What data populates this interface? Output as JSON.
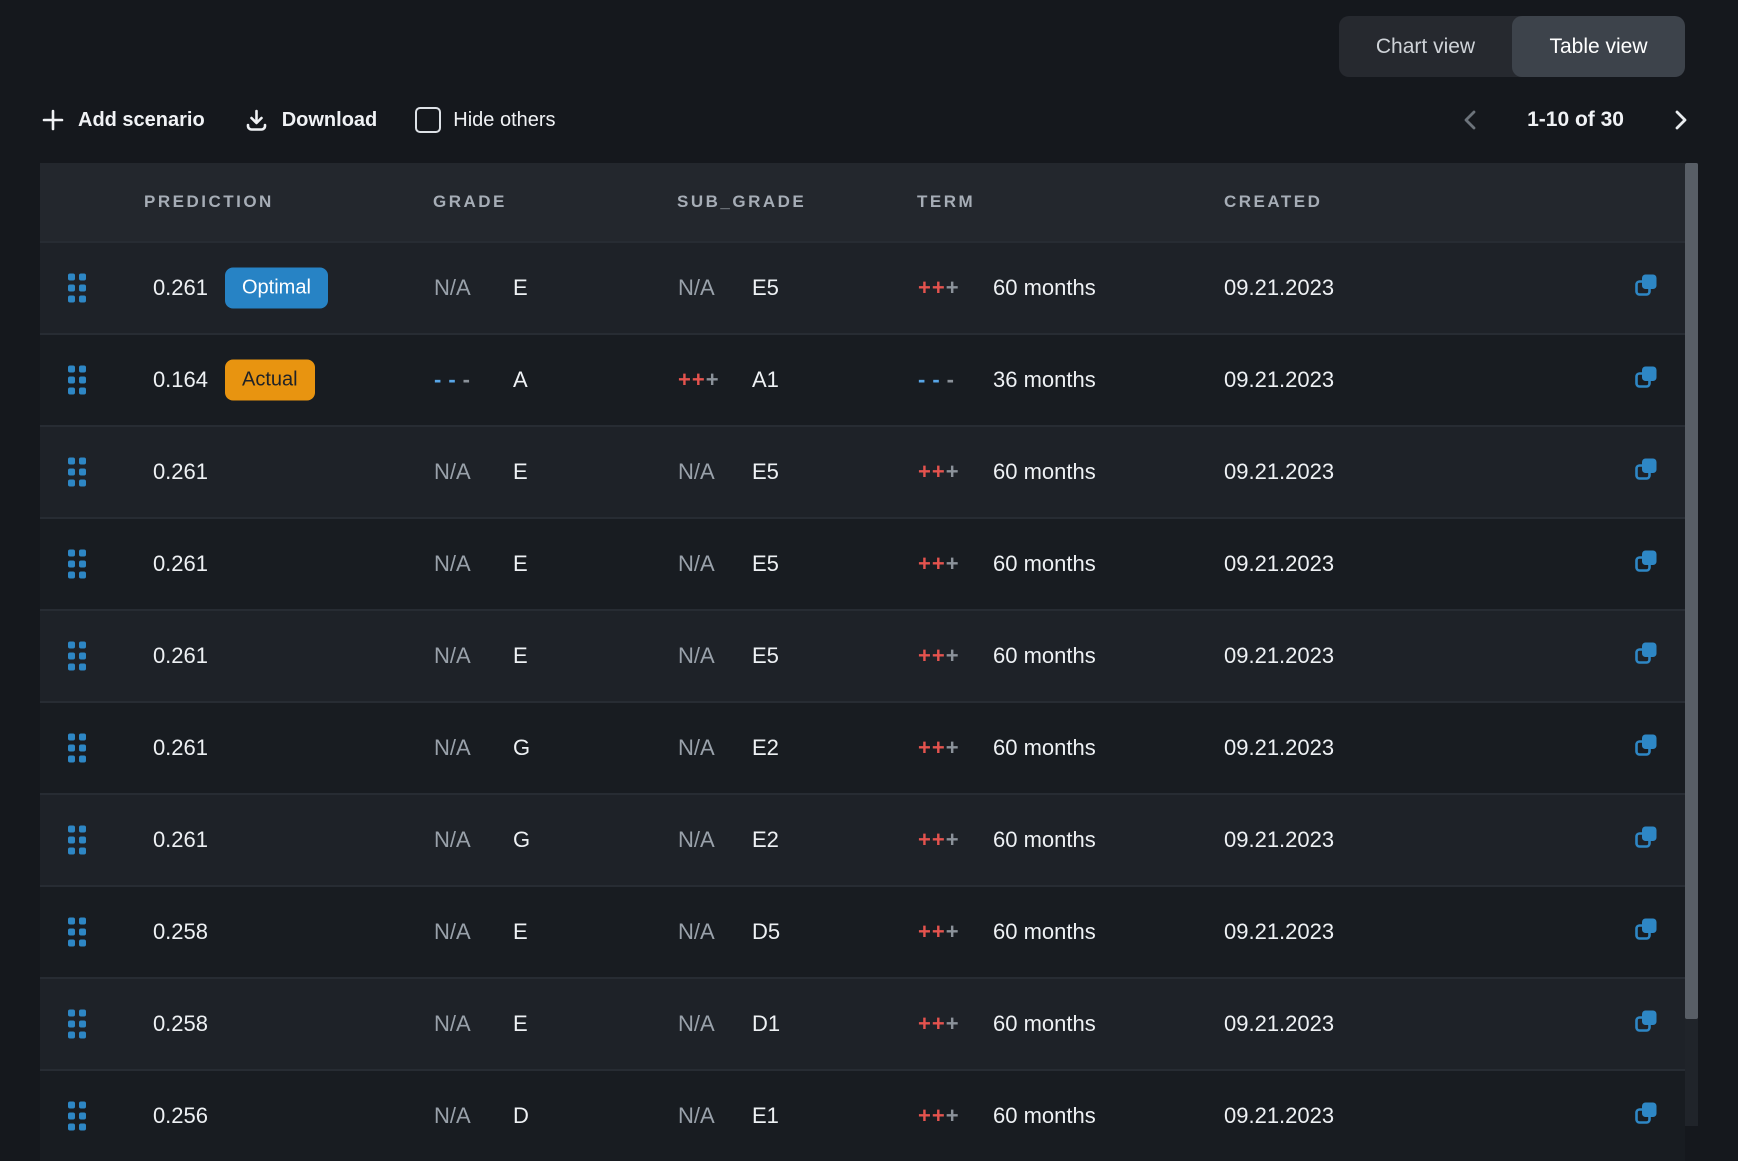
{
  "view_toggle": {
    "options": [
      {
        "label": "Chart view",
        "active": false
      },
      {
        "label": "Table view",
        "active": true
      }
    ]
  },
  "toolbar": {
    "add_scenario_label": "Add scenario",
    "download_label": "Download",
    "hide_others_label": "Hide others",
    "hide_others_checked": false
  },
  "pagination": {
    "range_label": "1-10 of 30",
    "prev_enabled": false,
    "next_enabled": true
  },
  "table": {
    "columns": [
      "PREDICTION",
      "GRADE",
      "SUB_GRADE",
      "TERM",
      "CREATED"
    ],
    "na_label": "N/A",
    "rows": [
      {
        "prediction": "0.261",
        "badge": {
          "label": "Optimal",
          "type": "optimal"
        },
        "grade": {
          "indicator": "na",
          "value": "E"
        },
        "sub_grade": {
          "indicator": "na",
          "value": "E5"
        },
        "term": {
          "indicator": "plus",
          "value": "60 months"
        },
        "created": "09.21.2023"
      },
      {
        "prediction": "0.164",
        "badge": {
          "label": "Actual",
          "type": "actual"
        },
        "grade": {
          "indicator": "minus",
          "value": "A"
        },
        "sub_grade": {
          "indicator": "plus",
          "value": "A1"
        },
        "term": {
          "indicator": "minus",
          "value": "36 months"
        },
        "created": "09.21.2023"
      },
      {
        "prediction": "0.261",
        "badge": null,
        "grade": {
          "indicator": "na",
          "value": "E"
        },
        "sub_grade": {
          "indicator": "na",
          "value": "E5"
        },
        "term": {
          "indicator": "plus",
          "value": "60 months"
        },
        "created": "09.21.2023"
      },
      {
        "prediction": "0.261",
        "badge": null,
        "grade": {
          "indicator": "na",
          "value": "E"
        },
        "sub_grade": {
          "indicator": "na",
          "value": "E5"
        },
        "term": {
          "indicator": "plus",
          "value": "60 months"
        },
        "created": "09.21.2023"
      },
      {
        "prediction": "0.261",
        "badge": null,
        "grade": {
          "indicator": "na",
          "value": "E"
        },
        "sub_grade": {
          "indicator": "na",
          "value": "E5"
        },
        "term": {
          "indicator": "plus",
          "value": "60 months"
        },
        "created": "09.21.2023"
      },
      {
        "prediction": "0.261",
        "badge": null,
        "grade": {
          "indicator": "na",
          "value": "G"
        },
        "sub_grade": {
          "indicator": "na",
          "value": "E2"
        },
        "term": {
          "indicator": "plus",
          "value": "60 months"
        },
        "created": "09.21.2023"
      },
      {
        "prediction": "0.261",
        "badge": null,
        "grade": {
          "indicator": "na",
          "value": "G"
        },
        "sub_grade": {
          "indicator": "na",
          "value": "E2"
        },
        "term": {
          "indicator": "plus",
          "value": "60 months"
        },
        "created": "09.21.2023"
      },
      {
        "prediction": "0.258",
        "badge": null,
        "grade": {
          "indicator": "na",
          "value": "E"
        },
        "sub_grade": {
          "indicator": "na",
          "value": "D5"
        },
        "term": {
          "indicator": "plus",
          "value": "60 months"
        },
        "created": "09.21.2023"
      },
      {
        "prediction": "0.258",
        "badge": null,
        "grade": {
          "indicator": "na",
          "value": "E"
        },
        "sub_grade": {
          "indicator": "na",
          "value": "D1"
        },
        "term": {
          "indicator": "plus",
          "value": "60 months"
        },
        "created": "09.21.2023"
      },
      {
        "prediction": "0.256",
        "badge": null,
        "grade": {
          "indicator": "na",
          "value": "D"
        },
        "sub_grade": {
          "indicator": "na",
          "value": "E1"
        },
        "term": {
          "indicator": "plus",
          "value": "60 months"
        },
        "created": "09.21.2023"
      }
    ]
  },
  "icons": {
    "add": "plus-icon",
    "download": "download-icon",
    "hide_others": "checkbox",
    "prev": "chevron-left-icon",
    "next": "chevron-right-icon",
    "row_drag": "drag-handle-icon",
    "row_copy": "duplicate-icon"
  },
  "colors": {
    "page_bg": "#15181d",
    "header_bg": "#23272d",
    "row_odd": "#1e2228",
    "row_even": "#181c21",
    "accent_blue": "#2e87c5",
    "badge_optimal": "#2783c5",
    "badge_actual": "#e89410",
    "indicator_plus": "#e4534e",
    "indicator_minus": "#58a6e8",
    "indicator_muted": "#8b929a"
  }
}
